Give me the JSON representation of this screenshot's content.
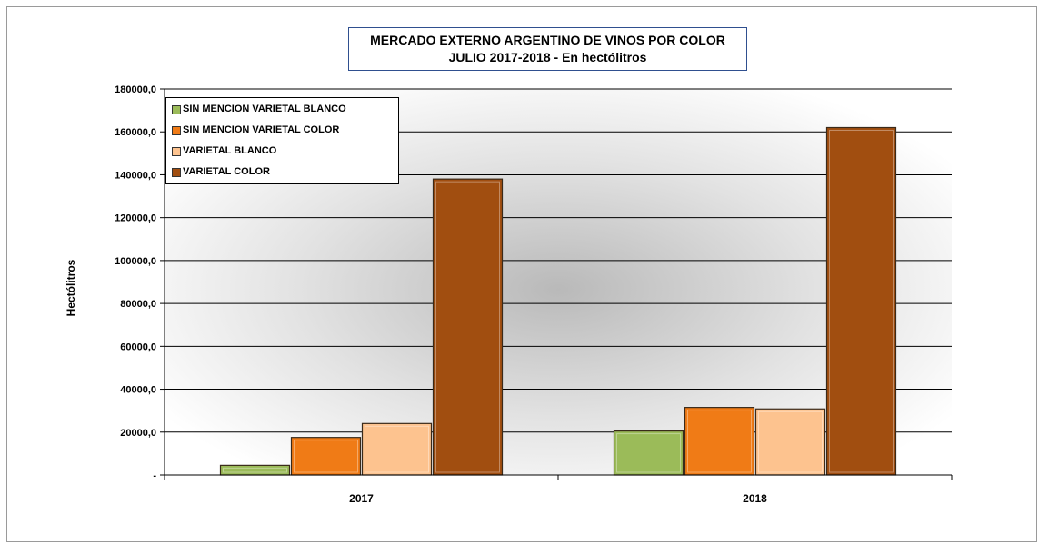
{
  "chart_data": {
    "type": "bar",
    "title": "MERCADO EXTERNO ARGENTINO DE VINOS POR COLOR",
    "subtitle": "JULIO 2017-2018 - En hectólitros",
    "xlabel": "",
    "ylabel": "Hectólitros",
    "categories": [
      "2017",
      "2018"
    ],
    "series": [
      {
        "name": "SIN MENCION VARIETAL BLANCO",
        "color": "#9bbb59",
        "values": [
          4500,
          20500
        ]
      },
      {
        "name": "SIN MENCION VARIETAL COLOR",
        "color": "#f07b16",
        "values": [
          17500,
          31500
        ]
      },
      {
        "name": "VARIETAL BLANCO",
        "color": "#fdc38f",
        "values": [
          24000,
          30800
        ]
      },
      {
        "name": "VARIETAL COLOR",
        "color": "#a14e10",
        "values": [
          138000,
          162000
        ]
      }
    ],
    "ylim": [
      0,
      180000
    ],
    "yticks": [
      "-",
      "20000,0",
      "40000,0",
      "60000,0",
      "80000,0",
      "100000,0",
      "120000,0",
      "140000,0",
      "160000,0",
      "180000,0"
    ],
    "grid": true,
    "legend_position": "top-left"
  }
}
